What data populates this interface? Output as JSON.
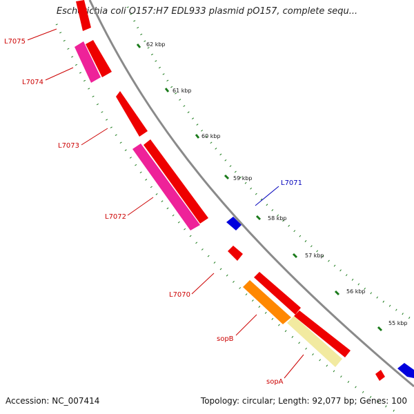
{
  "title": "Escherichia coli O157:H7 EDL933 plasmid pO157, complete sequ...",
  "footer": {
    "accession": "Accession: NC_007414",
    "summary": "Topology: circular; Length: 92,077 bp; Genes: 100"
  },
  "colors": {
    "forward_cds": "#ee0000",
    "reverse_cds": "#ee2299",
    "rna_like": "#0000dd",
    "sopB": "#ff8800",
    "sopA": "#f2eaa0",
    "backbone": "#8a8a8a",
    "gc_track": "#1a7a1a",
    "label_forward": "#cc0000",
    "label_reverse": "#0000bb"
  },
  "kbp_ticks": [
    "62 kbp",
    "61 kbp",
    "60 kbp",
    "59 kbp",
    "58 kbp",
    "57 kbp",
    "56 kbp",
    "55 kbp"
  ],
  "gene_labels": {
    "L7075": "L7075",
    "L7074": "L7074",
    "L7073": "L7073",
    "L7072": "L7072",
    "L7071": "L7071",
    "L7070": "L7070",
    "sopB": "sopB",
    "sopA": "sopA"
  }
}
